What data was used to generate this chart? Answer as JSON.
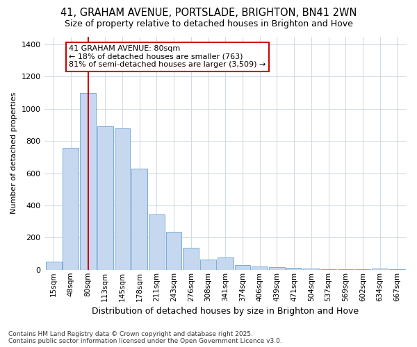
{
  "title_line1": "41, GRAHAM AVENUE, PORTSLADE, BRIGHTON, BN41 2WN",
  "title_line2": "Size of property relative to detached houses in Brighton and Hove",
  "xlabel": "Distribution of detached houses by size in Brighton and Hove",
  "ylabel": "Number of detached properties",
  "categories": [
    "15sqm",
    "48sqm",
    "80sqm",
    "113sqm",
    "145sqm",
    "178sqm",
    "211sqm",
    "243sqm",
    "276sqm",
    "308sqm",
    "341sqm",
    "374sqm",
    "406sqm",
    "439sqm",
    "471sqm",
    "504sqm",
    "537sqm",
    "569sqm",
    "602sqm",
    "634sqm",
    "667sqm"
  ],
  "values": [
    50,
    760,
    1100,
    890,
    880,
    630,
    345,
    235,
    135,
    65,
    75,
    30,
    20,
    15,
    10,
    8,
    5,
    3,
    2,
    8,
    5
  ],
  "bar_color": "#c5d8f0",
  "bar_edge_color": "#7bacd4",
  "vline_color": "#cc0000",
  "vline_x_index": 2,
  "annotation_text": "41 GRAHAM AVENUE: 80sqm\n← 18% of detached houses are smaller (763)\n81% of semi-detached houses are larger (3,509) →",
  "annotation_box_facecolor": "#ffffff",
  "annotation_box_edgecolor": "#cc0000",
  "ylim": [
    0,
    1450
  ],
  "yticks": [
    0,
    200,
    400,
    600,
    800,
    1000,
    1200,
    1400
  ],
  "footer": "Contains HM Land Registry data © Crown copyright and database right 2025.\nContains public sector information licensed under the Open Government Licence v3.0.",
  "bg_color": "#ffffff",
  "plot_bg_color": "#ffffff",
  "grid_color": "#d0dce8",
  "title_fontsize": 10.5,
  "subtitle_fontsize": 9,
  "ylabel_fontsize": 8,
  "xlabel_fontsize": 9,
  "tick_fontsize": 7.5,
  "footer_fontsize": 6.5,
  "ann_fontsize": 8
}
